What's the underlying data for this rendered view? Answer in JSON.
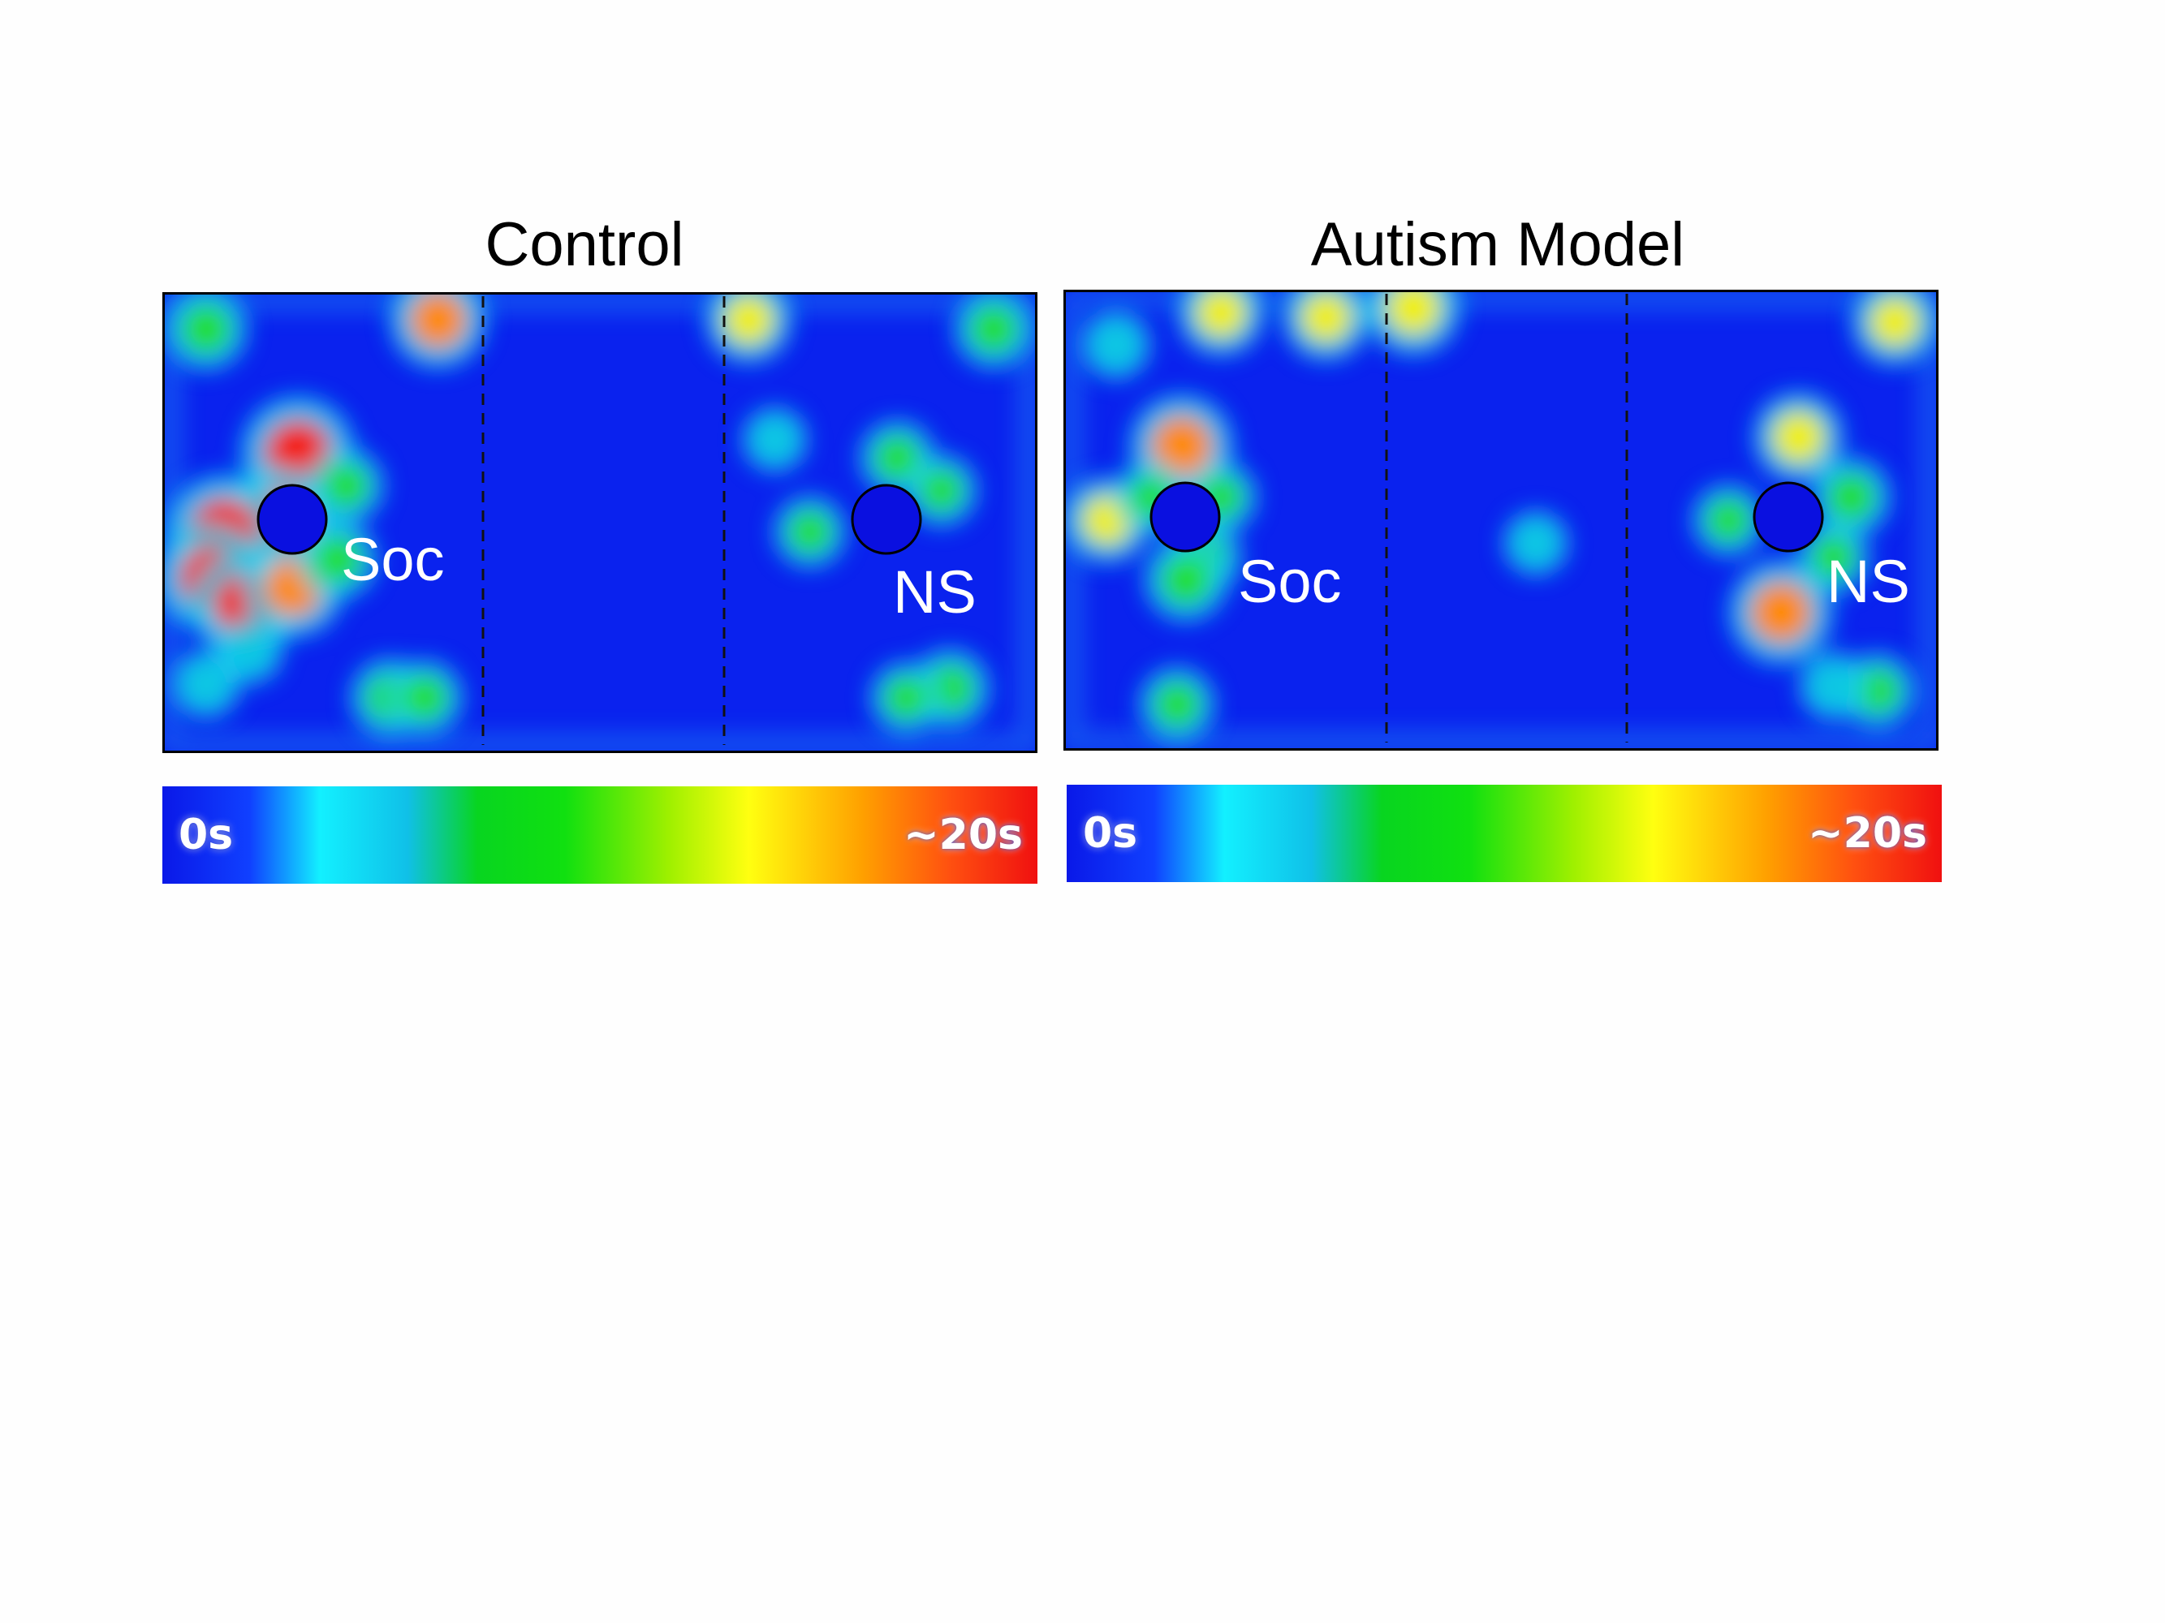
{
  "chart_data": [
    {
      "type": "heatmap",
      "title": "Control",
      "zone_labels": {
        "left": "Soc",
        "right": "NS"
      },
      "colorbar": {
        "min_label": "0s",
        "max_label": "~20s",
        "min": 0,
        "max": 20
      },
      "colors": [
        "#0a18e8",
        "#1040ff",
        "#12f0ff",
        "#08d520",
        "#a0f000",
        "#ffff10",
        "#ffa000",
        "#f01010"
      ],
      "hotspots": [
        {
          "x": 0.155,
          "y": 0.35,
          "value": 20
        },
        {
          "x": 0.13,
          "y": 0.5,
          "value": 19
        },
        {
          "x": 0.07,
          "y": 0.52,
          "value": 20
        },
        {
          "x": 0.055,
          "y": 0.62,
          "value": 18
        },
        {
          "x": 0.095,
          "y": 0.68,
          "value": 18
        },
        {
          "x": 0.15,
          "y": 0.64,
          "value": 16
        },
        {
          "x": 0.2,
          "y": 0.58,
          "value": 10
        },
        {
          "x": 0.21,
          "y": 0.42,
          "value": 9
        },
        {
          "x": 0.05,
          "y": 0.08,
          "value": 11
        },
        {
          "x": 0.315,
          "y": 0.06,
          "value": 15
        },
        {
          "x": 0.67,
          "y": 0.06,
          "value": 12
        },
        {
          "x": 0.95,
          "y": 0.08,
          "value": 10
        },
        {
          "x": 0.84,
          "y": 0.36,
          "value": 9
        },
        {
          "x": 0.89,
          "y": 0.43,
          "value": 8
        },
        {
          "x": 0.74,
          "y": 0.52,
          "value": 8
        },
        {
          "x": 0.7,
          "y": 0.32,
          "value": 6
        },
        {
          "x": 0.26,
          "y": 0.88,
          "value": 10
        },
        {
          "x": 0.3,
          "y": 0.88,
          "value": 9
        },
        {
          "x": 0.9,
          "y": 0.86,
          "value": 10
        },
        {
          "x": 0.85,
          "y": 0.88,
          "value": 8
        },
        {
          "x": 0.05,
          "y": 0.85,
          "value": 7
        },
        {
          "x": 0.1,
          "y": 0.78,
          "value": 6
        }
      ]
    },
    {
      "type": "heatmap",
      "title": "Autism Model",
      "zone_labels": {
        "left": "Soc",
        "right": "NS"
      },
      "colorbar": {
        "min_label": "0s",
        "max_label": "~20s",
        "min": 0,
        "max": 20
      },
      "colors": [
        "#0a18e8",
        "#1040ff",
        "#12f0ff",
        "#08d520",
        "#a0f000",
        "#ffff10",
        "#ffa000",
        "#f01010"
      ],
      "hotspots": [
        {
          "x": 0.135,
          "y": 0.34,
          "value": 17
        },
        {
          "x": 0.05,
          "y": 0.5,
          "value": 12
        },
        {
          "x": 0.16,
          "y": 0.58,
          "value": 9
        },
        {
          "x": 0.14,
          "y": 0.63,
          "value": 11
        },
        {
          "x": 0.1,
          "y": 0.45,
          "value": 8
        },
        {
          "x": 0.18,
          "y": 0.45,
          "value": 8
        },
        {
          "x": 0.06,
          "y": 0.12,
          "value": 7
        },
        {
          "x": 0.18,
          "y": 0.05,
          "value": 12
        },
        {
          "x": 0.3,
          "y": 0.06,
          "value": 12
        },
        {
          "x": 0.4,
          "y": 0.04,
          "value": 14
        },
        {
          "x": 0.95,
          "y": 0.07,
          "value": 12
        },
        {
          "x": 0.84,
          "y": 0.32,
          "value": 13
        },
        {
          "x": 0.9,
          "y": 0.45,
          "value": 10
        },
        {
          "x": 0.82,
          "y": 0.7,
          "value": 17
        },
        {
          "x": 0.76,
          "y": 0.5,
          "value": 8
        },
        {
          "x": 0.88,
          "y": 0.58,
          "value": 8
        },
        {
          "x": 0.13,
          "y": 0.9,
          "value": 9
        },
        {
          "x": 0.54,
          "y": 0.55,
          "value": 6
        },
        {
          "x": 0.93,
          "y": 0.87,
          "value": 9
        },
        {
          "x": 0.88,
          "y": 0.86,
          "value": 7
        }
      ]
    }
  ]
}
